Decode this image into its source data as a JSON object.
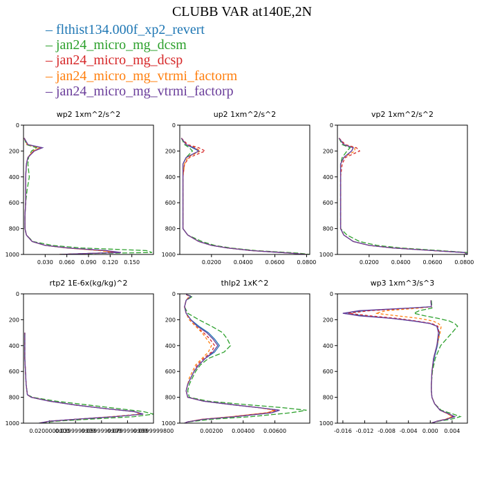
{
  "figure": {
    "title": "CLUBB VAR at140E,2N"
  },
  "legend": [
    {
      "name": "flthist134.000f_xp2_revert",
      "color": "#1f77b4",
      "dash": "solid"
    },
    {
      "name": "jan24_micro_mg_dcsm",
      "color": "#2ca02c",
      "dash": "longdash"
    },
    {
      "name": "jan24_micro_mg_dcsp",
      "color": "#d62728",
      "dash": "dash"
    },
    {
      "name": "jan24_micro_mg_vtrmi_factorm",
      "color": "#ff7f0e",
      "dash": "dash"
    },
    {
      "name": "jan24_micro_mg_vtrmi_factorp",
      "color": "#6a3d9a",
      "dash": "solid"
    }
  ],
  "chart_data": [
    {
      "type": "line",
      "title": "wp2  1xm^2/s^2",
      "xlim": [
        0,
        0.18
      ],
      "ylim": [
        1000,
        0
      ],
      "y_reversed": true,
      "xticks": [
        0.03,
        0.06,
        0.09,
        0.12,
        0.15
      ],
      "xtick_labels": [
        "0.030",
        "0.060",
        "0.090",
        "0.120",
        "0.150"
      ],
      "yticks": [
        0,
        200,
        400,
        600,
        800,
        1000
      ],
      "y": [
        100,
        150,
        175,
        200,
        250,
        300,
        400,
        500,
        600,
        700,
        800,
        850,
        900,
        930,
        950,
        970,
        985,
        992,
        1000
      ],
      "series": [
        {
          "values": [
            0.001,
            0.006,
            0.026,
            0.014,
            0.006,
            0.004,
            0.003,
            0.003,
            0.003,
            0.002,
            0.002,
            0.004,
            0.012,
            0.03,
            0.06,
            0.11,
            0.13,
            0.09,
            0.05
          ]
        },
        {
          "values": [
            0.001,
            0.004,
            0.018,
            0.011,
            0.007,
            0.006,
            0.008,
            0.005,
            0.003,
            0.002,
            0.002,
            0.004,
            0.013,
            0.04,
            0.08,
            0.17,
            0.178,
            0.1,
            0.05
          ]
        },
        {
          "values": [
            0.001,
            0.006,
            0.024,
            0.014,
            0.006,
            0.004,
            0.003,
            0.003,
            0.003,
            0.002,
            0.002,
            0.004,
            0.012,
            0.03,
            0.06,
            0.11,
            0.13,
            0.09,
            0.05
          ]
        },
        {
          "values": [
            0.001,
            0.005,
            0.022,
            0.013,
            0.006,
            0.004,
            0.003,
            0.003,
            0.003,
            0.002,
            0.002,
            0.004,
            0.012,
            0.03,
            0.06,
            0.105,
            0.125,
            0.09,
            0.05
          ]
        },
        {
          "values": [
            0.001,
            0.006,
            0.026,
            0.015,
            0.006,
            0.004,
            0.003,
            0.003,
            0.003,
            0.002,
            0.002,
            0.004,
            0.012,
            0.03,
            0.062,
            0.115,
            0.135,
            0.09,
            0.05
          ]
        }
      ]
    },
    {
      "type": "line",
      "title": "up2  1xm^2/s^2",
      "xlim": [
        0,
        0.082
      ],
      "ylim": [
        1000,
        0
      ],
      "y_reversed": true,
      "xticks": [
        0.02,
        0.04,
        0.06,
        0.08
      ],
      "xtick_labels": [
        "0.0200",
        "0.0400",
        "0.0600",
        "0.0800"
      ],
      "yticks": [
        0,
        200,
        400,
        600,
        800,
        1000
      ],
      "y": [
        100,
        150,
        175,
        200,
        250,
        300,
        400,
        500,
        600,
        700,
        800,
        850,
        900,
        930,
        950,
        970,
        990,
        1000
      ],
      "series": [
        {
          "values": [
            0.001,
            0.004,
            0.008,
            0.012,
            0.004,
            0.002,
            0.002,
            0.002,
            0.002,
            0.002,
            0.002,
            0.005,
            0.012,
            0.02,
            0.03,
            0.045,
            0.07,
            0.08
          ]
        },
        {
          "values": [
            0.001,
            0.003,
            0.006,
            0.008,
            0.004,
            0.002,
            0.002,
            0.002,
            0.002,
            0.002,
            0.002,
            0.005,
            0.014,
            0.022,
            0.032,
            0.048,
            0.075,
            0.082
          ]
        },
        {
          "values": [
            0.001,
            0.005,
            0.012,
            0.016,
            0.006,
            0.003,
            0.002,
            0.002,
            0.002,
            0.002,
            0.002,
            0.005,
            0.012,
            0.02,
            0.03,
            0.045,
            0.07,
            0.08
          ]
        },
        {
          "values": [
            0.001,
            0.004,
            0.01,
            0.013,
            0.005,
            0.003,
            0.002,
            0.002,
            0.002,
            0.002,
            0.002,
            0.005,
            0.012,
            0.02,
            0.03,
            0.045,
            0.07,
            0.08
          ]
        },
        {
          "values": [
            0.001,
            0.004,
            0.009,
            0.012,
            0.004,
            0.002,
            0.002,
            0.002,
            0.002,
            0.002,
            0.002,
            0.005,
            0.012,
            0.02,
            0.03,
            0.045,
            0.07,
            0.08
          ]
        }
      ]
    },
    {
      "type": "line",
      "title": "vp2  1xm^2/s^2",
      "xlim": [
        0,
        0.082
      ],
      "ylim": [
        1000,
        0
      ],
      "y_reversed": true,
      "xticks": [
        0.02,
        0.04,
        0.06,
        0.08
      ],
      "xtick_labels": [
        "0.0200",
        "0.0400",
        "0.0600",
        "0.0800"
      ],
      "yticks": [
        0,
        200,
        400,
        600,
        800,
        1000
      ],
      "y": [
        100,
        150,
        175,
        200,
        250,
        300,
        400,
        500,
        600,
        700,
        800,
        850,
        900,
        930,
        950,
        970,
        985,
        1000
      ],
      "series": [
        {
          "values": [
            0.001,
            0.004,
            0.01,
            0.009,
            0.004,
            0.002,
            0.002,
            0.002,
            0.002,
            0.002,
            0.002,
            0.004,
            0.01,
            0.02,
            0.035,
            0.06,
            0.08,
            0.082
          ]
        },
        {
          "values": [
            0.001,
            0.003,
            0.008,
            0.006,
            0.003,
            0.002,
            0.002,
            0.002,
            0.002,
            0.002,
            0.002,
            0.006,
            0.014,
            0.025,
            0.04,
            0.065,
            0.082,
            0.082
          ]
        },
        {
          "values": [
            0.001,
            0.005,
            0.012,
            0.014,
            0.005,
            0.003,
            0.002,
            0.002,
            0.002,
            0.002,
            0.002,
            0.004,
            0.01,
            0.02,
            0.035,
            0.06,
            0.08,
            0.082
          ]
        },
        {
          "values": [
            0.001,
            0.004,
            0.011,
            0.011,
            0.004,
            0.002,
            0.002,
            0.002,
            0.002,
            0.002,
            0.002,
            0.004,
            0.01,
            0.02,
            0.035,
            0.06,
            0.08,
            0.082
          ]
        },
        {
          "values": [
            0.001,
            0.004,
            0.01,
            0.009,
            0.004,
            0.002,
            0.002,
            0.002,
            0.002,
            0.002,
            0.002,
            0.004,
            0.01,
            0.02,
            0.035,
            0.06,
            0.08,
            0.082
          ]
        }
      ]
    },
    {
      "type": "line",
      "title": "rtp2  1E-6x(kg/kg)^2",
      "xlim": [
        0,
        0.1
      ],
      "ylim": [
        1000,
        0
      ],
      "y_reversed": true,
      "xticks": [
        0.02,
        0.04,
        0.06,
        0.08,
        0.1
      ],
      "xtick_labels": [
        "0.0200000000",
        "0.0399999999",
        "0.0599999999",
        "0.0799999999",
        "0.0999999800"
      ],
      "yticks": [
        0,
        200,
        400,
        600,
        800,
        1000
      ],
      "y": [
        300,
        500,
        700,
        780,
        800,
        830,
        860,
        890,
        910,
        930,
        950,
        970,
        985,
        1000
      ],
      "series": [
        {
          "values": [
            0.001,
            0.001,
            0.002,
            0.003,
            0.006,
            0.02,
            0.04,
            0.065,
            0.085,
            0.092,
            0.07,
            0.04,
            0.02,
            0.012
          ]
        },
        {
          "values": [
            0.001,
            0.001,
            0.002,
            0.003,
            0.007,
            0.025,
            0.05,
            0.075,
            0.092,
            0.1,
            0.085,
            0.05,
            0.025,
            0.012
          ]
        },
        {
          "values": [
            0.001,
            0.001,
            0.002,
            0.003,
            0.006,
            0.02,
            0.04,
            0.065,
            0.085,
            0.092,
            0.07,
            0.04,
            0.02,
            0.012
          ]
        },
        {
          "values": [
            0.001,
            0.001,
            0.002,
            0.003,
            0.006,
            0.02,
            0.04,
            0.065,
            0.085,
            0.09,
            0.068,
            0.04,
            0.02,
            0.012
          ]
        },
        {
          "values": [
            0.001,
            0.001,
            0.002,
            0.003,
            0.006,
            0.02,
            0.04,
            0.065,
            0.085,
            0.092,
            0.07,
            0.04,
            0.02,
            0.012
          ]
        }
      ]
    },
    {
      "type": "line",
      "title": "thlp2  1xK^2",
      "xlim": [
        0,
        0.0082
      ],
      "ylim": [
        1000,
        0
      ],
      "y_reversed": true,
      "xticks": [
        0.002,
        0.004,
        0.006
      ],
      "xtick_labels": [
        "0.00200",
        "0.00400",
        "0.00600"
      ],
      "yticks": [
        0,
        200,
        400,
        600,
        800,
        1000
      ],
      "y": [
        5,
        20,
        50,
        100,
        150,
        200,
        250,
        300,
        350,
        400,
        450,
        500,
        550,
        600,
        650,
        700,
        750,
        800,
        830,
        860,
        880,
        900,
        920,
        950,
        970,
        990,
        1000
      ],
      "series": [
        {
          "values": [
            0.0004,
            0.0007,
            0.0004,
            0.0003,
            0.0004,
            0.0007,
            0.0012,
            0.0018,
            0.0022,
            0.0025,
            0.0022,
            0.0016,
            0.0012,
            0.0009,
            0.0007,
            0.0005,
            0.0004,
            0.0005,
            0.0015,
            0.0035,
            0.005,
            0.0063,
            0.0058,
            0.0035,
            0.0015,
            0.0005,
            0.0003
          ]
        },
        {
          "values": [
            0.0004,
            0.0008,
            0.0004,
            0.0003,
            0.0005,
            0.0012,
            0.002,
            0.0027,
            0.003,
            0.0032,
            0.0028,
            0.0018,
            0.0013,
            0.001,
            0.0008,
            0.0006,
            0.0005,
            0.0006,
            0.0018,
            0.0045,
            0.0065,
            0.008,
            0.007,
            0.0045,
            0.002,
            0.0006,
            0.0003
          ]
        },
        {
          "values": [
            0.0004,
            0.0006,
            0.0004,
            0.0003,
            0.0004,
            0.0006,
            0.001,
            0.0015,
            0.0019,
            0.0022,
            0.002,
            0.0015,
            0.0011,
            0.0009,
            0.0007,
            0.0005,
            0.0004,
            0.0005,
            0.0015,
            0.0035,
            0.005,
            0.0061,
            0.0055,
            0.0033,
            0.0014,
            0.0005,
            0.0003
          ]
        },
        {
          "values": [
            0.0004,
            0.0006,
            0.0004,
            0.0003,
            0.0004,
            0.0006,
            0.001,
            0.0014,
            0.0017,
            0.002,
            0.0018,
            0.0014,
            0.001,
            0.0008,
            0.0006,
            0.0005,
            0.0004,
            0.0005,
            0.0015,
            0.0035,
            0.005,
            0.006,
            0.0055,
            0.0033,
            0.0014,
            0.0005,
            0.0003
          ]
        },
        {
          "values": [
            0.0004,
            0.0007,
            0.0004,
            0.0003,
            0.0004,
            0.0007,
            0.0011,
            0.0017,
            0.0021,
            0.0024,
            0.0021,
            0.0016,
            0.0012,
            0.0009,
            0.0007,
            0.0005,
            0.0004,
            0.0005,
            0.0015,
            0.0035,
            0.005,
            0.0063,
            0.0058,
            0.0035,
            0.0015,
            0.0005,
            0.0003
          ]
        }
      ]
    },
    {
      "type": "line",
      "title": "wp3  1xm^3/s^3",
      "xlim": [
        -0.017,
        0.0068
      ],
      "ylim": [
        1000,
        0
      ],
      "y_reversed": true,
      "xticks": [
        -0.016,
        -0.012,
        -0.008,
        -0.004,
        0,
        0.004
      ],
      "xtick_labels": [
        "-0.016",
        "-0.012",
        "-0.008",
        "-0.004",
        "0.000",
        "0.004"
      ],
      "yticks": [
        0,
        200,
        400,
        600,
        800,
        1000
      ],
      "y": [
        50,
        100,
        110,
        130,
        150,
        170,
        190,
        210,
        230,
        250,
        300,
        400,
        500,
        600,
        700,
        750,
        800,
        850,
        900,
        930,
        950,
        970,
        985,
        1000
      ],
      "series": [
        {
          "values": [
            0.0001,
            0.0002,
            -0.004,
            -0.012,
            -0.016,
            -0.012,
            -0.007,
            -0.003,
            0.0,
            0.0012,
            0.0017,
            0.0013,
            0.0007,
            0.0003,
            0.0002,
            0.0002,
            0.0003,
            0.0008,
            0.0018,
            0.0035,
            0.0043,
            0.003,
            0.0012,
            0.0002
          ]
        },
        {
          "values": [
            0.0002,
            0.0003,
            0.0003,
            -0.002,
            -0.003,
            -0.001,
            0.0015,
            0.0035,
            0.0045,
            0.005,
            0.004,
            0.0019,
            0.0009,
            0.0004,
            0.0002,
            0.0002,
            0.0003,
            0.0008,
            0.002,
            0.0042,
            0.0055,
            0.0038,
            0.0015,
            0.0002
          ]
        },
        {
          "values": [
            0.0001,
            0.0002,
            -0.003,
            -0.011,
            -0.015,
            -0.011,
            -0.006,
            -0.0025,
            0.0003,
            0.0014,
            0.0016,
            0.0012,
            0.0006,
            0.0003,
            0.0002,
            0.0002,
            0.0003,
            0.0008,
            0.0018,
            0.0033,
            0.004,
            0.0028,
            0.0012,
            0.0002
          ]
        },
        {
          "values": [
            0.0001,
            0.0002,
            -0.002,
            -0.008,
            -0.01,
            -0.006,
            -0.002,
            0.0005,
            0.0015,
            0.002,
            0.0018,
            0.0012,
            0.0006,
            0.0003,
            0.0002,
            0.0002,
            0.0003,
            0.0008,
            0.0018,
            0.0033,
            0.004,
            0.0028,
            0.0012,
            0.0002
          ]
        },
        {
          "values": [
            0.0001,
            0.0002,
            -0.004,
            -0.013,
            -0.016,
            -0.013,
            -0.007,
            -0.003,
            0.0,
            0.0012,
            0.0015,
            0.0012,
            0.0006,
            0.0003,
            0.0002,
            0.0002,
            0.0003,
            0.0008,
            0.0018,
            0.0035,
            0.0045,
            0.003,
            0.0012,
            0.0002
          ]
        }
      ]
    }
  ]
}
